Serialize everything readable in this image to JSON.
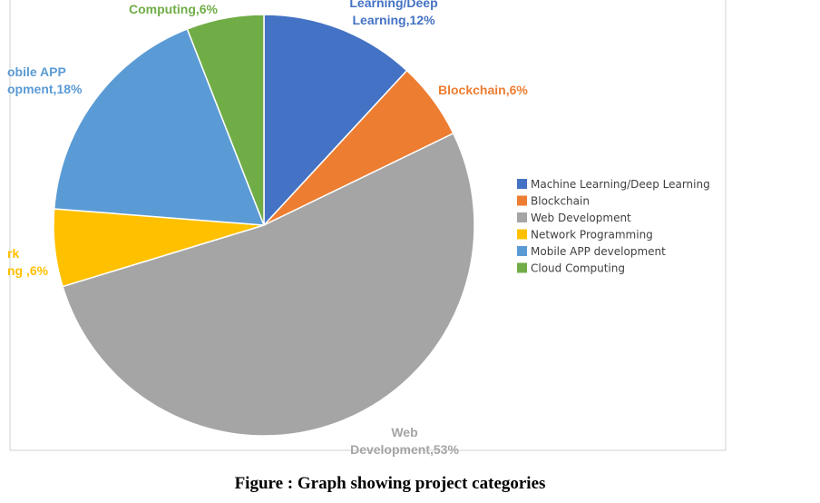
{
  "chart_data": {
    "type": "pie",
    "series": [
      {
        "slices": [
          {
            "label": "Machine Learning/Deep Learning",
            "value": 12,
            "color": "#4472C4"
          },
          {
            "label": "Blockchain",
            "value": 6,
            "color": "#ED7D31"
          },
          {
            "label": "Web Development",
            "value": 53,
            "color": "#A5A5A5"
          },
          {
            "label": "Network Programming",
            "value": 6,
            "color": "#FFC000"
          },
          {
            "label": "Mobile APP development",
            "value": 18,
            "color": "#5B9BD5"
          },
          {
            "label": "Cloud Computing",
            "value": 6,
            "color": "#70AD47"
          }
        ]
      }
    ],
    "data_labels": [
      [
        "Learning/Deep",
        "Learning,12%"
      ],
      [
        "Blockchain,6%"
      ],
      [
        "Web",
        "Development,53%"
      ],
      [
        "rk",
        "ng ,6%"
      ],
      [
        "obile APP",
        "opment,18%"
      ],
      [
        "Computing,6%"
      ]
    ],
    "legend_position": "right"
  },
  "caption": "Figure : Graph showing project categories"
}
